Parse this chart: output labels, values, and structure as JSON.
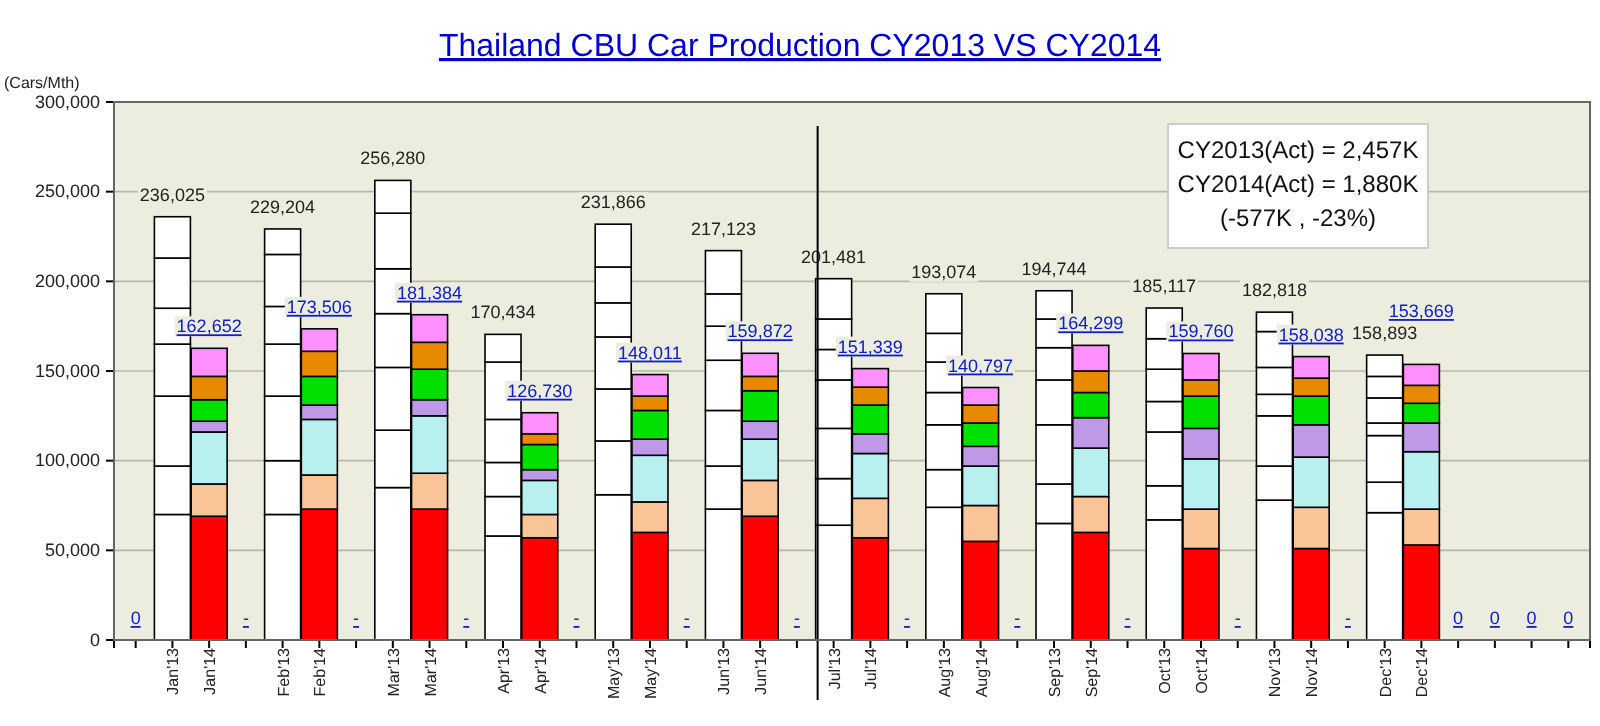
{
  "chart_data": {
    "type": "bar",
    "stacked": true,
    "title": "Thailand CBU Car Production CY2013 VS CY2014",
    "ylabel": "(Cars/Mth)",
    "categories": [
      null,
      "Jan'13",
      "Jan'14",
      null,
      "Feb'13",
      "Feb'14",
      null,
      "Mar'13",
      "Mar'14",
      null,
      "Apr'13",
      "Apr'14",
      null,
      "May'13",
      "May'14",
      null,
      "Jun'13",
      "Jun'14",
      null,
      "Jul'13",
      "Jul'14",
      null,
      "Aug'13",
      "Aug'14",
      null,
      "Sep'13",
      "Sep'14",
      null,
      "Oct'13",
      "Oct'14",
      null,
      "Nov'13",
      "Nov'14",
      null,
      "Dec'13",
      "Dec'14",
      null,
      null,
      null,
      null
    ],
    "series": [
      {
        "color": "#ff0000",
        "colors": [
          null,
          "#ffffff",
          null,
          null,
          "#ffffff",
          null,
          null,
          "#ffffff",
          null,
          null,
          "#ffffff",
          null,
          null,
          "#ffffff",
          null,
          null,
          "#ffffff",
          null,
          null,
          "#ffffff",
          null,
          null,
          "#ffffff",
          null,
          null,
          "#ffffff",
          null,
          null,
          "#ffffff",
          null,
          null,
          "#ffffff",
          null,
          null,
          "#ffffff",
          null,
          null,
          null,
          null,
          null
        ],
        "values": [
          null,
          70000,
          69000,
          null,
          70000,
          73000,
          null,
          85000,
          73000,
          null,
          58000,
          57000,
          null,
          81000,
          60000,
          null,
          73000,
          69000,
          null,
          64000,
          57000,
          null,
          74000,
          55000,
          null,
          65000,
          60000,
          null,
          67000,
          51000,
          null,
          78000,
          51000,
          null,
          71000,
          53000,
          null,
          null,
          null,
          null
        ]
      },
      {
        "color": "#f8c498",
        "colors": [
          null,
          "#ffffff",
          null,
          null,
          "#ffffff",
          null,
          null,
          "#ffffff",
          null,
          null,
          "#ffffff",
          null,
          null,
          "#ffffff",
          null,
          null,
          "#ffffff",
          null,
          null,
          "#ffffff",
          null,
          null,
          "#ffffff",
          null,
          null,
          "#ffffff",
          null,
          null,
          "#ffffff",
          null,
          null,
          "#ffffff",
          null,
          null,
          "#ffffff",
          null,
          null,
          null,
          null,
          null
        ],
        "values": [
          null,
          27000,
          18000,
          null,
          30000,
          19000,
          null,
          32000,
          20000,
          null,
          22000,
          13000,
          null,
          30000,
          17000,
          null,
          24000,
          20000,
          null,
          26000,
          22000,
          null,
          21000,
          20000,
          null,
          22000,
          20000,
          null,
          19000,
          22000,
          null,
          19000,
          23000,
          null,
          17000,
          20000,
          null,
          null,
          null,
          null
        ]
      },
      {
        "color": "#b8f0f0",
        "colors": [
          null,
          "#ffffff",
          null,
          null,
          "#ffffff",
          null,
          null,
          "#ffffff",
          null,
          null,
          "#ffffff",
          null,
          null,
          "#ffffff",
          null,
          null,
          "#ffffff",
          null,
          null,
          "#ffffff",
          null,
          null,
          "#ffffff",
          null,
          null,
          "#ffffff",
          null,
          null,
          "#ffffff",
          null,
          null,
          "#ffffff",
          null,
          null,
          "#ffffff",
          null,
          null,
          null,
          null,
          null
        ],
        "values": [
          null,
          39000,
          29000,
          null,
          36000,
          31000,
          null,
          35000,
          32000,
          null,
          19000,
          19000,
          null,
          29000,
          26000,
          null,
          31000,
          23000,
          null,
          28000,
          25000,
          null,
          25000,
          22000,
          null,
          33000,
          27000,
          null,
          30000,
          28000,
          null,
          28000,
          28000,
          null,
          26000,
          32000,
          null,
          null,
          null,
          null
        ]
      },
      {
        "color": "#c098e8",
        "colors": [
          null,
          "#ffffff",
          null,
          null,
          "#ffffff",
          null,
          null,
          "#ffffff",
          null,
          null,
          "#ffffff",
          null,
          null,
          "#ffffff",
          null,
          null,
          "#ffffff",
          null,
          null,
          "#ffffff",
          null,
          null,
          "#ffffff",
          null,
          null,
          "#ffffff",
          null,
          null,
          "#ffffff",
          null,
          null,
          "#ffffff",
          null,
          null,
          "#ffffff",
          null,
          null,
          null,
          null,
          null
        ],
        "values": [
          null,
          29000,
          6000,
          null,
          29000,
          8000,
          null,
          30000,
          9000,
          null,
          24000,
          6000,
          null,
          29000,
          9000,
          null,
          28000,
          10000,
          null,
          27000,
          11000,
          null,
          18000,
          11000,
          null,
          25000,
          17000,
          null,
          17000,
          17000,
          null,
          12000,
          18000,
          null,
          7000,
          16000,
          null,
          null,
          null,
          null
        ]
      },
      {
        "color": "#00e000",
        "colors": [
          null,
          "#ffffff",
          null,
          null,
          "#ffffff",
          null,
          null,
          "#ffffff",
          null,
          null,
          "#ffffff",
          null,
          null,
          "#ffffff",
          null,
          null,
          "#ffffff",
          null,
          null,
          "#ffffff",
          null,
          null,
          "#ffffff",
          null,
          null,
          "#ffffff",
          null,
          null,
          "#ffffff",
          null,
          null,
          "#ffffff",
          null,
          null,
          "#ffffff",
          null,
          null,
          null,
          null,
          null
        ],
        "values": [
          null,
          20000,
          12000,
          null,
          21000,
          16000,
          null,
          25000,
          17000,
          null,
          32000,
          14000,
          null,
          19000,
          16000,
          null,
          19000,
          17000,
          null,
          17000,
          16000,
          null,
          17000,
          13000,
          null,
          18000,
          14000,
          null,
          18000,
          18000,
          null,
          15000,
          16000,
          null,
          14000,
          11000,
          null,
          null,
          null,
          null
        ]
      },
      {
        "color": "#e88a00",
        "colors": [
          null,
          "#ffffff",
          null,
          null,
          "#ffffff",
          null,
          null,
          "#ffffff",
          null,
          null,
          "#ffffff",
          null,
          null,
          "#ffffff",
          null,
          null,
          "#ffffff",
          null,
          null,
          "#ffffff",
          null,
          null,
          "#ffffff",
          null,
          null,
          "#ffffff",
          null,
          null,
          "#ffffff",
          null,
          null,
          "#ffffff",
          null,
          null,
          "#ffffff",
          null,
          null,
          null,
          null,
          null
        ],
        "values": [
          null,
          28000,
          13000,
          null,
          29000,
          14000,
          null,
          31000,
          15000,
          null,
          15434,
          6000,
          null,
          20000,
          8000,
          null,
          18000,
          8000,
          null,
          17000,
          10000,
          null,
          16000,
          10000,
          null,
          16000,
          12000,
          null,
          17000,
          9000,
          null,
          20000,
          10000,
          null,
          12000,
          10000,
          null,
          null,
          null,
          null
        ]
      },
      {
        "color": "#ff90ff",
        "colors": [
          null,
          "#ffffff",
          null,
          null,
          "#ffffff",
          null,
          null,
          "#ffffff",
          null,
          null,
          null,
          null,
          null,
          "#ffffff",
          null,
          null,
          "#ffffff",
          null,
          null,
          "#ffffff",
          null,
          null,
          "#ffffff",
          null,
          null,
          "#ffffff",
          null,
          null,
          "#ffffff",
          null,
          null,
          "#ffffff",
          null,
          null,
          "#ffffff",
          null,
          null,
          null,
          null,
          null
        ],
        "values": [
          null,
          23025,
          15652,
          null,
          14204,
          12506,
          null,
          18280,
          15384,
          null,
          null,
          11730,
          null,
          23866,
          12011,
          null,
          24123,
          12872,
          null,
          22481,
          10339,
          null,
          22074,
          9797,
          null,
          15744,
          14299,
          null,
          17117,
          14760,
          null,
          10818,
          12038,
          null,
          11893,
          11669,
          null,
          null,
          null,
          null
        ]
      }
    ],
    "totals": [
      "0",
      "236,025",
      "162,652",
      "-",
      "229,204",
      "173,506",
      "-",
      "256,280",
      "181,384",
      "-",
      "170,434",
      "126,730",
      "-",
      "231,866",
      "148,011",
      "-",
      "217,123",
      "159,872",
      "-",
      "201,481",
      "151,339",
      "-",
      "193,074",
      "140,797",
      "-",
      "194,744",
      "164,299",
      "-",
      "185,117",
      "159,760",
      "-",
      "182,818",
      "158,038",
      "-",
      "158,893",
      "153,669",
      "0",
      "0",
      "0",
      "0"
    ],
    "ylim": [
      0,
      300000
    ],
    "yticks": [
      {
        "value": 0,
        "label": "0"
      },
      {
        "value": 50000,
        "label": "50,000"
      },
      {
        "value": 100000,
        "label": "100,000"
      },
      {
        "value": 150000,
        "label": "150,000"
      },
      {
        "value": 200000,
        "label": "200,000"
      },
      {
        "value": 250000,
        "label": "250,000"
      },
      {
        "value": 300000,
        "label": "300,000"
      }
    ],
    "grid": "y",
    "ref_lines": [
      {
        "axis": "x",
        "value": "Jul'13",
        "color": "#000000"
      }
    ],
    "annotations": [
      "CY2013(Act) = 2,457K",
      "CY2014(Act) = 1,880K",
      "(-577K , -23%)"
    ]
  }
}
